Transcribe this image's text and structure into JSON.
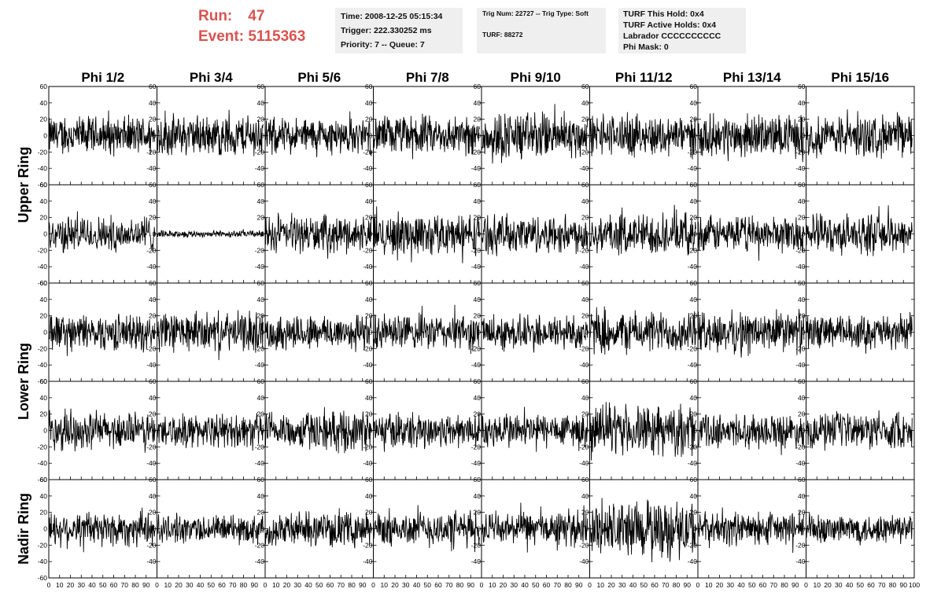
{
  "run": {
    "run_label": "Run:",
    "run_value": "47",
    "event_label": "Event:",
    "event_value": "5115363"
  },
  "info1": {
    "time": "Time: 2008-12-25 05:15:34",
    "trigger": "Trigger: 222.330252 ms",
    "priority": "Priority: 7 -- Queue: 7"
  },
  "info2": {
    "trig": "Trig Num: 22727 -- Trig Type: Soft",
    "turf": "TURF: 88272"
  },
  "info3": {
    "hold": "TURF This Hold: 0x4",
    "active": "TURF Active Holds: 0x4",
    "labrador": "Labrador CCCCCCCCCC",
    "phimask": "Phi Mask: 0"
  },
  "chart_data": {
    "type": "line",
    "columns": [
      "Phi 1/2",
      "Phi 3/4",
      "Phi 5/6",
      "Phi 7/8",
      "Phi 9/10",
      "Phi 11/12",
      "Phi 13/14",
      "Phi 15/16"
    ],
    "ring_labels": [
      "Upper Ring",
      "Lower Ring",
      "Nadir Ring"
    ],
    "rows": 5,
    "xlim": [
      0,
      100
    ],
    "ylim": [
      -60,
      60
    ],
    "y_ticks": [
      -60,
      -40,
      -20,
      0,
      20,
      40,
      60
    ],
    "x_ticks": [
      0,
      10,
      20,
      30,
      40,
      50,
      60,
      70,
      80,
      90,
      100
    ],
    "trace_x_range": [
      0,
      98
    ],
    "trace_points": 260,
    "amplitude_peak": [
      [
        28,
        30,
        26,
        28,
        34,
        30,
        30,
        30
      ],
      [
        26,
        5,
        26,
        30,
        28,
        30,
        26,
        28
      ],
      [
        26,
        28,
        26,
        26,
        26,
        30,
        30,
        24
      ],
      [
        26,
        24,
        28,
        26,
        26,
        36,
        24,
        26
      ],
      [
        26,
        20,
        24,
        26,
        24,
        42,
        24,
        22
      ]
    ],
    "color": "#000000"
  }
}
